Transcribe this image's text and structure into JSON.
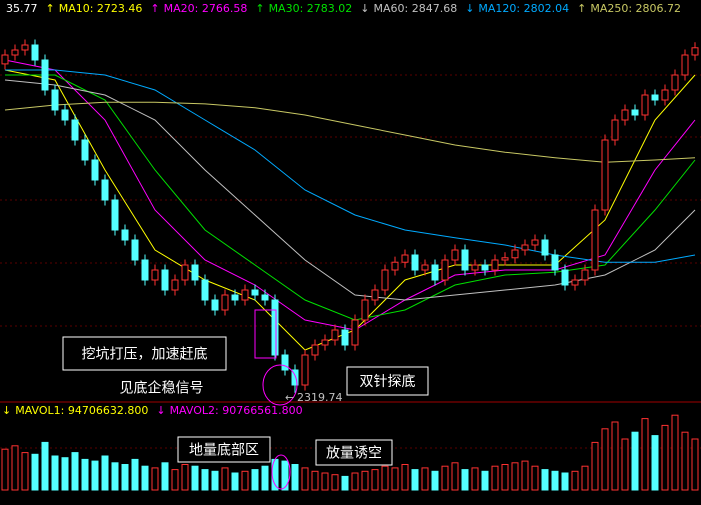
{
  "chart_data": {
    "type": "candlestick",
    "ylim": [
      2316,
      3000
    ],
    "open": [
      2912,
      2928,
      2937,
      2946,
      2919,
      2865,
      2829,
      2811,
      2775,
      2739,
      2703,
      2667,
      2613,
      2595,
      2559,
      2523,
      2541,
      2505,
      2523,
      2550,
      2523,
      2487,
      2469,
      2496,
      2487,
      2505,
      2496,
      2487,
      2388,
      2361,
      2334,
      2388,
      2406,
      2415,
      2433,
      2406,
      2451,
      2487,
      2505,
      2541,
      2555,
      2568,
      2541,
      2550,
      2523,
      2559,
      2577,
      2541,
      2550,
      2541,
      2559,
      2563,
      2577,
      2586,
      2595,
      2568,
      2541,
      2514,
      2523,
      2541,
      2649,
      2775,
      2811,
      2829,
      2820,
      2856,
      2847,
      2865,
      2892,
      2928
    ],
    "high": [
      2938,
      2947,
      2956,
      2956,
      2929,
      2875,
      2839,
      2821,
      2785,
      2749,
      2713,
      2677,
      2623,
      2605,
      2569,
      2551,
      2551,
      2533,
      2560,
      2560,
      2533,
      2497,
      2506,
      2506,
      2515,
      2515,
      2506,
      2497,
      2398,
      2371,
      2398,
      2416,
      2425,
      2443,
      2443,
      2461,
      2497,
      2515,
      2551,
      2565,
      2578,
      2578,
      2560,
      2560,
      2569,
      2587,
      2587,
      2560,
      2560,
      2569,
      2573,
      2587,
      2596,
      2605,
      2605,
      2578,
      2551,
      2533,
      2551,
      2659,
      2785,
      2821,
      2839,
      2839,
      2866,
      2866,
      2875,
      2902,
      2938,
      2951
    ],
    "low": [
      2902,
      2918,
      2927,
      2909,
      2855,
      2819,
      2801,
      2765,
      2729,
      2693,
      2657,
      2603,
      2585,
      2549,
      2513,
      2513,
      2495,
      2495,
      2513,
      2513,
      2477,
      2459,
      2459,
      2477,
      2477,
      2486,
      2477,
      2378,
      2351,
      2319.74,
      2324,
      2378,
      2396,
      2405,
      2396,
      2396,
      2441,
      2477,
      2495,
      2531,
      2545,
      2531,
      2531,
      2513,
      2513,
      2549,
      2531,
      2531,
      2531,
      2531,
      2549,
      2553,
      2567,
      2576,
      2558,
      2531,
      2504,
      2504,
      2513,
      2531,
      2639,
      2765,
      2801,
      2810,
      2810,
      2837,
      2837,
      2855,
      2882,
      2918
    ],
    "close": [
      2928,
      2937,
      2946,
      2919,
      2865,
      2829,
      2811,
      2775,
      2739,
      2703,
      2667,
      2613,
      2595,
      2559,
      2523,
      2541,
      2505,
      2523,
      2550,
      2523,
      2487,
      2469,
      2496,
      2487,
      2505,
      2496,
      2487,
      2388,
      2361,
      2334,
      2388,
      2406,
      2415,
      2433,
      2406,
      2451,
      2487,
      2505,
      2541,
      2555,
      2568,
      2541,
      2550,
      2523,
      2559,
      2577,
      2541,
      2550,
      2541,
      2559,
      2563,
      2577,
      2586,
      2595,
      2568,
      2541,
      2514,
      2523,
      2541,
      2649,
      2775,
      2811,
      2829,
      2820,
      2856,
      2847,
      2865,
      2892,
      2928,
      2941
    ],
    "up_color": "#ff3232",
    "down_color": "#54ffff",
    "ma_index": [
      0,
      5,
      10,
      15,
      20,
      25,
      30,
      35,
      40,
      45,
      50,
      55,
      60,
      65,
      69
    ],
    "ma_lines": [
      {
        "color": "#ffff00",
        "values": [
          2901,
          2883,
          2721,
          2577,
          2523,
          2487,
          2397,
          2433,
          2523,
          2550,
          2550,
          2550,
          2631,
          2811,
          2892
        ]
      },
      {
        "color": "#ff00ff",
        "values": [
          2919,
          2901,
          2811,
          2649,
          2559,
          2514,
          2451,
          2433,
          2487,
          2532,
          2541,
          2541,
          2568,
          2721,
          2811
        ]
      },
      {
        "color": "#00e000",
        "values": [
          2892,
          2892,
          2847,
          2721,
          2613,
          2550,
          2487,
          2451,
          2469,
          2514,
          2532,
          2537,
          2550,
          2649,
          2739
        ]
      },
      {
        "color": "#c0c0c0",
        "values": [
          2883,
          2874,
          2856,
          2811,
          2721,
          2640,
          2559,
          2496,
          2487,
          2496,
          2505,
          2514,
          2532,
          2577,
          2649
        ]
      },
      {
        "color": "#00aaff",
        "values": [
          2901,
          2901,
          2892,
          2865,
          2811,
          2757,
          2685,
          2640,
          2613,
          2599,
          2586,
          2568,
          2555,
          2555,
          2568
        ]
      },
      {
        "color": "#c8c864",
        "values": [
          2829,
          2838,
          2843,
          2843,
          2840,
          2833,
          2820,
          2802,
          2784,
          2766,
          2753,
          2743,
          2735,
          2739,
          2743
        ]
      }
    ],
    "header": [
      {
        "text": "35.77",
        "color": "#ffffff"
      },
      {
        "arrow": "↑",
        "text": "MA10: 2723.46",
        "color": "#ffff00"
      },
      {
        "arrow": "↑",
        "text": "MA20: 2766.58",
        "color": "#ff00ff"
      },
      {
        "arrow": "↑",
        "text": "MA30: 2783.02",
        "color": "#00e000"
      },
      {
        "arrow": "↓",
        "text": "MA60: 2847.68",
        "color": "#c0c0c0"
      },
      {
        "arrow": "↓",
        "text": "MA120: 2802.04",
        "color": "#00aaff"
      },
      {
        "arrow": "↑",
        "text": "MA250: 2806.72",
        "color": "#c8c864"
      }
    ],
    "annotations": [
      "挖坑打压，加速赶底",
      "见底企稳信号",
      "双针探底",
      "地量底部区",
      "放量诱空"
    ],
    "volume": {
      "ylim": [
        0,
        250000000
      ],
      "values": [
        120000000,
        130000000,
        110000000,
        105000000,
        140000000,
        100000000,
        95000000,
        110000000,
        90000000,
        85000000,
        100000000,
        80000000,
        75000000,
        90000000,
        70000000,
        65000000,
        80000000,
        60000000,
        75000000,
        70000000,
        60000000,
        55000000,
        65000000,
        50000000,
        55000000,
        60000000,
        70000000,
        90000000,
        85000000,
        75000000,
        65000000,
        55000000,
        50000000,
        45000000,
        40000000,
        50000000,
        55000000,
        60000000,
        70000000,
        65000000,
        75000000,
        60000000,
        65000000,
        55000000,
        70000000,
        80000000,
        60000000,
        65000000,
        55000000,
        70000000,
        75000000,
        80000000,
        85000000,
        70000000,
        60000000,
        55000000,
        50000000,
        55000000,
        70000000,
        140000000,
        180000000,
        200000000,
        150000000,
        170000000,
        210000000,
        160000000,
        190000000,
        220000000,
        170000000,
        150000000
      ],
      "header": [
        {
          "arrow": "↓",
          "text": "MAVOL1: 94706632.800",
          "color": "#ffff00"
        },
        {
          "arrow": "↓",
          "text": "MAVOL2: 90766561.800",
          "color": "#ff00ff"
        }
      ]
    }
  }
}
